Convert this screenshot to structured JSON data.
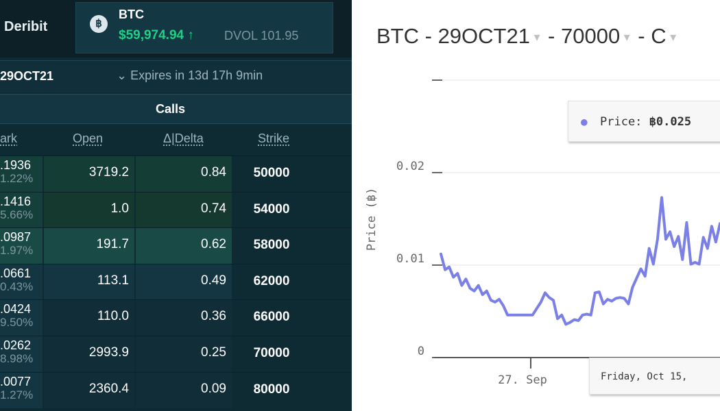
{
  "header": {
    "brand": "Deribit",
    "btc_icon": "฿",
    "symbol": "BTC",
    "price": "$59,974.94 ↑",
    "dvol": "DVOL 101.95"
  },
  "expiry": {
    "label": "29OCT21",
    "expires_text": "⌄ Expires in 13d 17h 9min"
  },
  "calls_label": "Calls",
  "columns": {
    "mark": "ark",
    "open": "Open",
    "delta": "Δ|Delta",
    "strike": "Strike"
  },
  "rows": [
    {
      "mark": ".1936",
      "mark_pct": "1.22%",
      "open": "3719.2",
      "delta": "0.84",
      "strike": "50000"
    },
    {
      "mark": ".1416",
      "mark_pct": "5.66%",
      "open": "1.0",
      "delta": "0.74",
      "strike": "54000"
    },
    {
      "mark": ".0987",
      "mark_pct": "1.97%",
      "open": "191.7",
      "delta": "0.62",
      "strike": "58000"
    },
    {
      "mark": ".0661",
      "mark_pct": "0.43%",
      "open": "113.1",
      "delta": "0.49",
      "strike": "62000"
    },
    {
      "mark": ".0424",
      "mark_pct": "9.50%",
      "open": "110.0",
      "delta": "0.36",
      "strike": "66000"
    },
    {
      "mark": ".0262",
      "mark_pct": "8.98%",
      "open": "2993.9",
      "delta": "0.25",
      "strike": "70000"
    },
    {
      "mark": ".0077",
      "mark_pct": "1.27%",
      "open": "2360.4",
      "delta": "0.09",
      "strike": "80000"
    }
  ],
  "chart_panel": {
    "title_parts": {
      "asset": "BTC",
      "sep1": " - ",
      "expiry": "29OCT21",
      "sep2": " - ",
      "strike": "70000",
      "sep3": " - ",
      "type": "C"
    },
    "caret": "▼",
    "tooltip_dot": "●",
    "tooltip_label": "Price: ",
    "tooltip_value": "฿0.025",
    "x_tooltip": "Friday, Oct 15,"
  },
  "chart_data": {
    "type": "line",
    "xlabel": "",
    "ylabel": "Price (฿)",
    "ylim": [
      0,
      0.03
    ],
    "y_ticks": [
      "0",
      "0.01",
      "0.02"
    ],
    "x_ticks": [
      "27. Sep"
    ],
    "line_color": "#7a80e6",
    "series": [
      {
        "values": [
          0.0112,
          0.0095,
          0.0098,
          0.0087,
          0.0091,
          0.0078,
          0.0085,
          0.0075,
          0.0072,
          0.0078,
          0.0068,
          0.0072,
          0.0062,
          0.006,
          0.0063,
          0.0056,
          0.0046,
          0.0046,
          0.0046,
          0.0046,
          0.0046,
          0.0046,
          0.0046,
          0.0053,
          0.006,
          0.007,
          0.0065,
          0.0062,
          0.0042,
          0.0046,
          0.0036,
          0.0038,
          0.0041,
          0.004,
          0.0046,
          0.0047,
          0.0046,
          0.007,
          0.0071,
          0.0058,
          0.0063,
          0.0061,
          0.0064,
          0.0065,
          0.0064,
          0.0058,
          0.0076,
          0.0086,
          0.0096,
          0.0088,
          0.0118,
          0.0101,
          0.0128,
          0.0173,
          0.0128,
          0.0136,
          0.012,
          0.0131,
          0.0106,
          0.0146,
          0.0101,
          0.0103,
          0.0101,
          0.013,
          0.0118,
          0.0142,
          0.0125,
          0.0145
        ]
      }
    ]
  }
}
